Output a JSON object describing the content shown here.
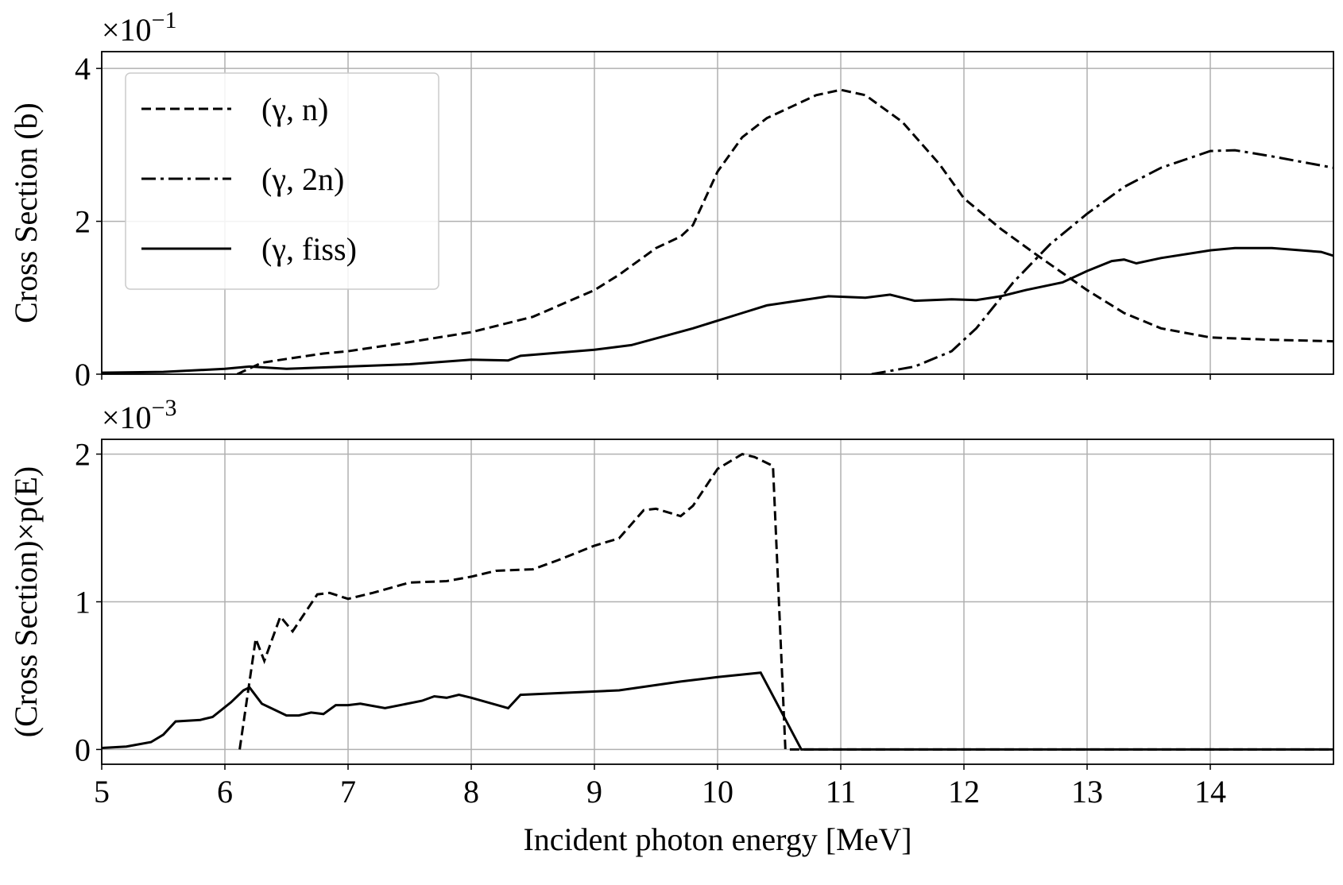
{
  "chart_data": [
    {
      "type": "line",
      "ylabel": "Cross Section (b)",
      "y_multiplier": {
        "base": "×10",
        "exponent": "−1"
      },
      "xlim": [
        5,
        15
      ],
      "xticks": [
        5,
        6,
        7,
        8,
        9,
        10,
        11,
        12,
        13,
        14
      ],
      "ylim": [
        0,
        4.22
      ],
      "yticks": [
        0,
        2,
        4
      ],
      "grid": true,
      "legend": "upper left",
      "series": [
        {
          "name": "(γ, n)",
          "color": "#000000",
          "style": "dash",
          "x": [
            6.1,
            6.3,
            6.5,
            6.8,
            7.0,
            7.5,
            8.0,
            8.5,
            9.0,
            9.2,
            9.5,
            9.7,
            9.8,
            10.0,
            10.2,
            10.4,
            10.6,
            10.8,
            11.0,
            11.2,
            11.5,
            11.8,
            12.0,
            12.3,
            12.6,
            13.0,
            13.3,
            13.6,
            14.0,
            14.5,
            15.0
          ],
          "values": [
            0,
            0.15,
            0.2,
            0.27,
            0.3,
            0.42,
            0.55,
            0.75,
            1.1,
            1.3,
            1.65,
            1.8,
            1.95,
            2.65,
            3.1,
            3.35,
            3.5,
            3.65,
            3.72,
            3.65,
            3.3,
            2.75,
            2.3,
            1.9,
            1.55,
            1.1,
            0.8,
            0.6,
            0.48,
            0.45,
            0.43
          ]
        },
        {
          "name": "(γ, 2n)",
          "color": "#000000",
          "style": "dashdot",
          "x": [
            11.25,
            11.6,
            11.9,
            12.1,
            12.4,
            12.7,
            13.0,
            13.3,
            13.6,
            14.0,
            14.2,
            14.5,
            15.0
          ],
          "values": [
            0,
            0.1,
            0.3,
            0.6,
            1.2,
            1.7,
            2.1,
            2.45,
            2.7,
            2.92,
            2.93,
            2.85,
            2.7
          ]
        },
        {
          "name": "(γ, fiss)",
          "color": "#000000",
          "style": "solid",
          "x": [
            5.0,
            5.5,
            6.0,
            6.2,
            6.5,
            7.0,
            7.5,
            8.0,
            8.3,
            8.4,
            9.0,
            9.3,
            9.8,
            10.2,
            10.4,
            10.9,
            11.2,
            11.4,
            11.6,
            11.9,
            12.1,
            12.3,
            12.5,
            12.8,
            13.0,
            13.2,
            13.3,
            13.4,
            13.6,
            14.0,
            14.2,
            14.5,
            14.9,
            15.0
          ],
          "values": [
            0.02,
            0.03,
            0.07,
            0.1,
            0.07,
            0.1,
            0.13,
            0.19,
            0.18,
            0.24,
            0.32,
            0.38,
            0.6,
            0.8,
            0.9,
            1.02,
            1.0,
            1.04,
            0.96,
            0.98,
            0.97,
            1.02,
            1.1,
            1.2,
            1.35,
            1.48,
            1.5,
            1.45,
            1.52,
            1.62,
            1.65,
            1.65,
            1.6,
            1.55
          ]
        }
      ]
    },
    {
      "type": "line",
      "ylabel": "(Cross Section)×p(E)",
      "xlabel": "Incident photon energy [MeV]",
      "y_multiplier": {
        "base": "×10",
        "exponent": "−3"
      },
      "xlim": [
        5,
        15
      ],
      "xticks": [
        5,
        6,
        7,
        8,
        9,
        10,
        11,
        12,
        13,
        14
      ],
      "ylim": [
        -0.1,
        2.1
      ],
      "yticks": [
        0,
        1,
        2
      ],
      "grid": true,
      "series": [
        {
          "color": "#000000",
          "style": "dash",
          "x": [
            6.12,
            6.25,
            6.32,
            6.45,
            6.55,
            6.75,
            6.85,
            7.0,
            7.2,
            7.5,
            7.8,
            8.0,
            8.2,
            8.5,
            8.7,
            9.0,
            9.2,
            9.4,
            9.5,
            9.7,
            9.8,
            10.0,
            10.2,
            10.3,
            10.45,
            10.55,
            15.0
          ],
          "values": [
            0,
            0.75,
            0.6,
            0.9,
            0.8,
            1.05,
            1.06,
            1.02,
            1.06,
            1.13,
            1.14,
            1.17,
            1.21,
            1.22,
            1.28,
            1.38,
            1.43,
            1.62,
            1.63,
            1.58,
            1.65,
            1.9,
            2.0,
            1.98,
            1.92,
            0,
            0
          ]
        },
        {
          "color": "#000000",
          "style": "solid",
          "x": [
            5.0,
            5.2,
            5.4,
            5.5,
            5.6,
            5.8,
            5.9,
            6.05,
            6.15,
            6.2,
            6.3,
            6.5,
            6.6,
            6.7,
            6.8,
            6.9,
            7.0,
            7.1,
            7.3,
            7.6,
            7.7,
            7.8,
            7.9,
            8.0,
            8.3,
            8.4,
            9.2,
            9.7,
            10.0,
            10.35,
            10.68,
            15.0
          ],
          "values": [
            0.01,
            0.02,
            0.05,
            0.1,
            0.19,
            0.2,
            0.22,
            0.32,
            0.4,
            0.42,
            0.31,
            0.23,
            0.23,
            0.25,
            0.24,
            0.3,
            0.3,
            0.31,
            0.28,
            0.33,
            0.36,
            0.35,
            0.37,
            0.35,
            0.28,
            0.37,
            0.4,
            0.46,
            0.49,
            0.52,
            0,
            0
          ]
        }
      ]
    }
  ]
}
